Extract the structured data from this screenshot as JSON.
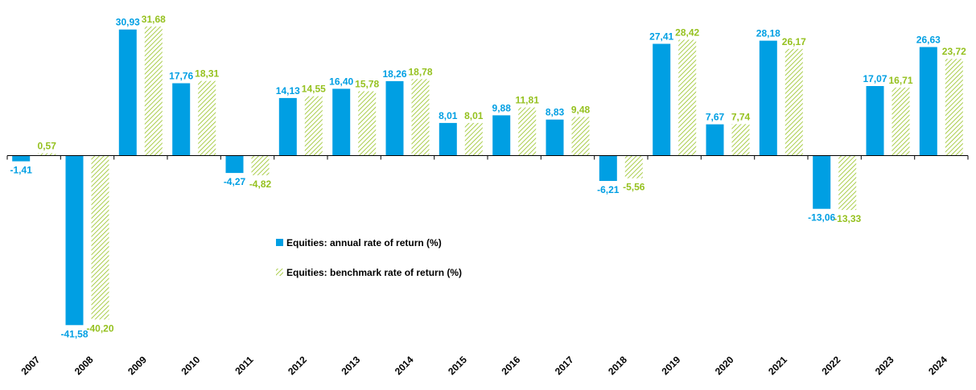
{
  "chart_data": {
    "type": "bar",
    "categories": [
      "2007",
      "2008",
      "2009",
      "2010",
      "2011",
      "2012",
      "2013",
      "2014",
      "2015",
      "2016",
      "2017",
      "2018",
      "2019",
      "2020",
      "2021",
      "2022",
      "2023",
      "2024"
    ],
    "series": [
      {
        "name": "Equities: annual rate of return (%)",
        "values": [
          -1.41,
          -41.58,
          30.93,
          17.76,
          -4.27,
          14.13,
          16.4,
          18.26,
          8.01,
          9.88,
          8.83,
          -6.21,
          27.41,
          7.67,
          28.18,
          -13.06,
          17.07,
          26.63
        ],
        "labels": [
          "-1,41",
          "-41,58",
          "30,93",
          "17,76",
          "-4,27",
          "14,13",
          "16,40",
          "18,26",
          "8,01",
          "9,88",
          "8,83",
          "-6,21",
          "27,41",
          "7,67",
          "28,18",
          "-13,06",
          "17,07",
          "26,63"
        ],
        "color": "#009fe3",
        "style": "solid"
      },
      {
        "name": "Equities: benchmark rate of return (%)",
        "values": [
          0.57,
          -40.2,
          31.68,
          18.31,
          -4.82,
          14.55,
          15.78,
          18.78,
          8.01,
          11.81,
          9.48,
          -5.56,
          28.42,
          7.74,
          26.17,
          -13.33,
          16.71,
          23.72
        ],
        "labels": [
          "0,57",
          "-40,20",
          "31,68",
          "18,31",
          "-4,82",
          "14,55",
          "15,78",
          "18,78",
          "8,01",
          "11,81",
          "9,48",
          "-5,56",
          "28,42",
          "7,74",
          "26,17",
          "-13,33",
          "16,71",
          "23,72"
        ],
        "color": "#95c11f",
        "style": "hatched"
      }
    ],
    "grid": false,
    "legend_position": "center"
  }
}
